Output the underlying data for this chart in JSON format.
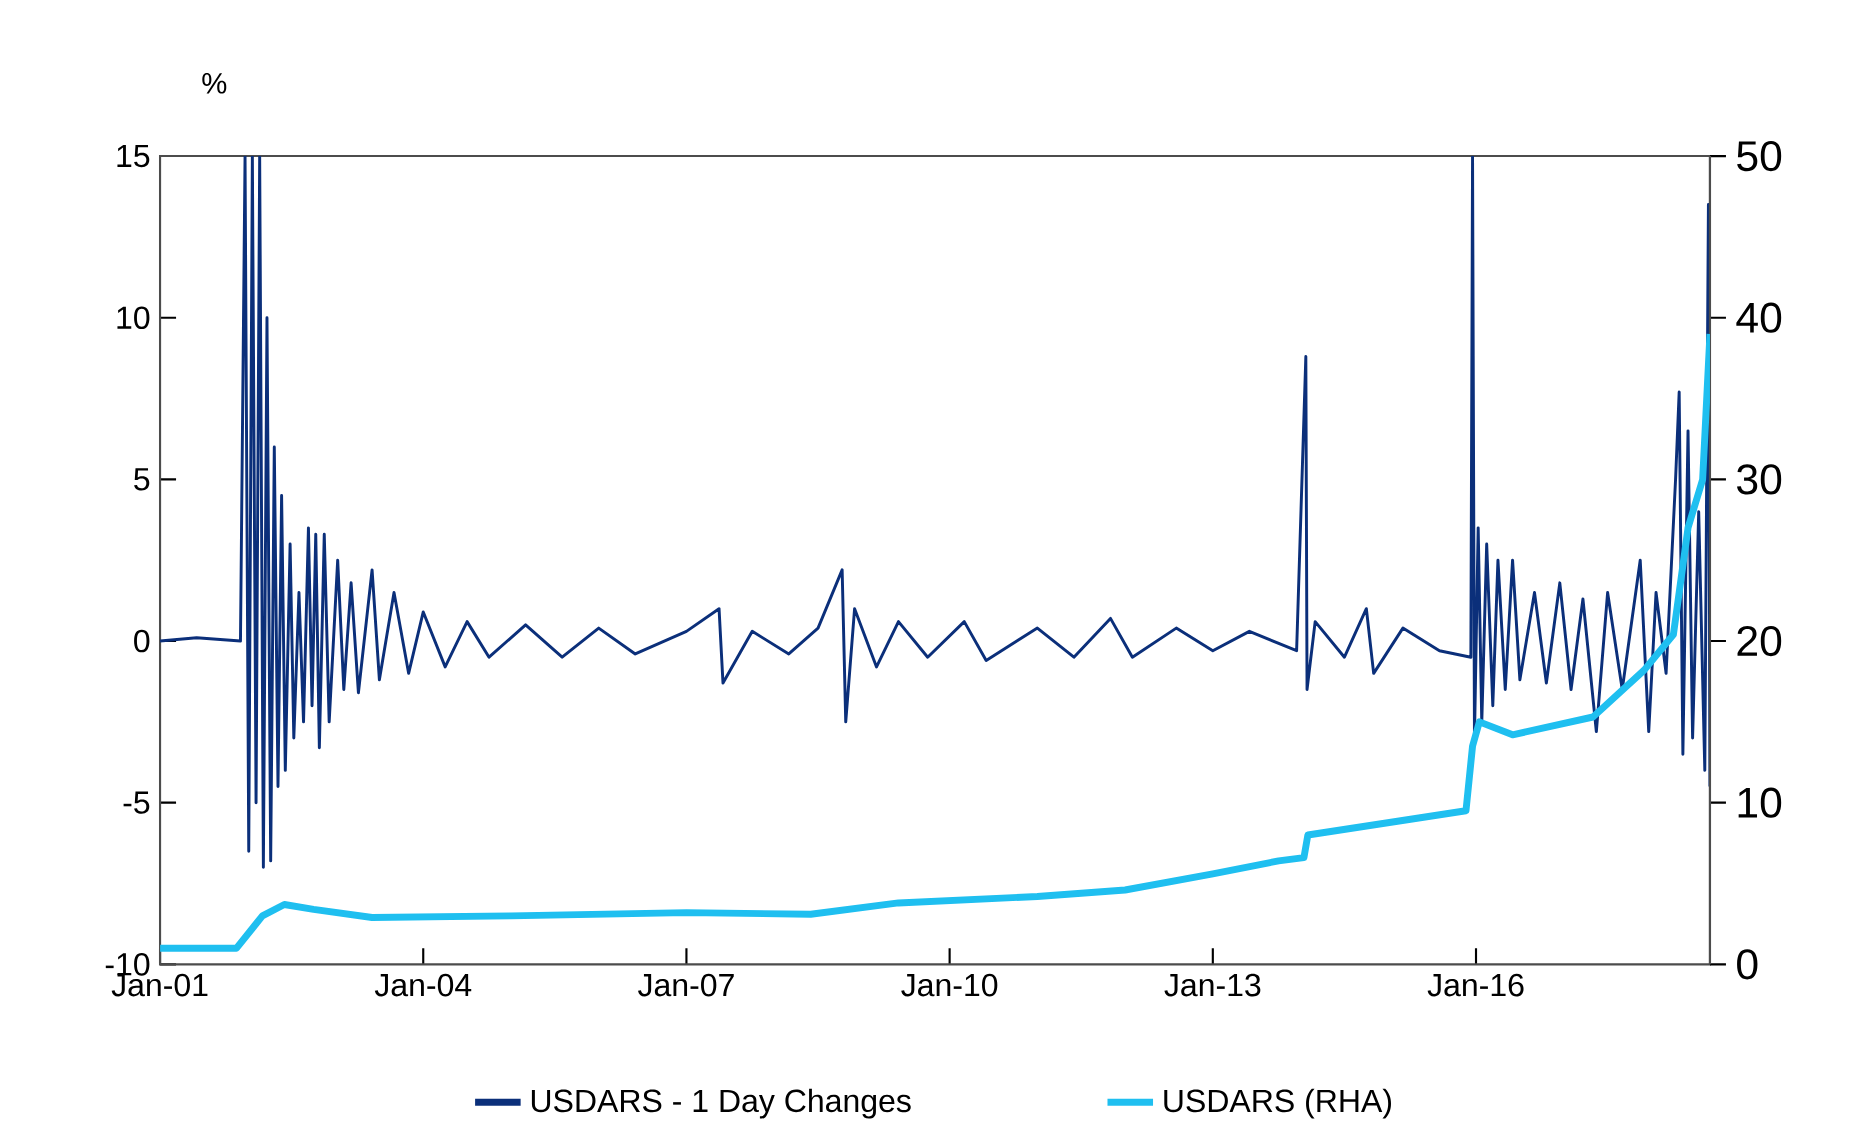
{
  "chart_data": {
    "type": "line",
    "ylabel": "%",
    "legend": "bottom",
    "xlim": [
      "2001-01-01",
      "2018-09-01"
    ],
    "xticks": [
      {
        "value": "2001-01-01",
        "label": "Jan-01"
      },
      {
        "value": "2004-01-01",
        "label": "Jan-04"
      },
      {
        "value": "2007-01-01",
        "label": "Jan-07"
      },
      {
        "value": "2010-01-01",
        "label": "Jan-10"
      },
      {
        "value": "2013-01-01",
        "label": "Jan-13"
      },
      {
        "value": "2016-01-01",
        "label": "Jan-16"
      }
    ],
    "ylim": [
      -10,
      15
    ],
    "yticks": [
      -10,
      -5,
      0,
      5,
      10,
      15
    ],
    "y2lim": [
      0,
      50
    ],
    "y2ticks": [
      0,
      10,
      20,
      30,
      40,
      50
    ],
    "series": [
      {
        "name": "USDARS - 1 Day Changes",
        "color": "#0b2f7a",
        "x": [
          "2001-01-01",
          "2001-06-01",
          "2001-12-01",
          "2001-12-20",
          "2002-01-05",
          "2002-01-20",
          "2002-02-05",
          "2002-02-20",
          "2002-03-05",
          "2002-03-20",
          "2002-04-05",
          "2002-04-20",
          "2002-05-05",
          "2002-05-20",
          "2002-06-05",
          "2002-06-25",
          "2002-07-10",
          "2002-08-01",
          "2002-08-20",
          "2002-09-10",
          "2002-09-25",
          "2002-10-10",
          "2002-10-25",
          "2002-11-15",
          "2002-12-05",
          "2003-01-10",
          "2003-02-05",
          "2003-03-05",
          "2003-04-05",
          "2003-06-01",
          "2003-07-01",
          "2003-09-01",
          "2003-11-01",
          "2004-01-01",
          "2004-04-01",
          "2004-07-01",
          "2004-10-01",
          "2005-03-01",
          "2005-08-01",
          "2006-01-01",
          "2006-06-01",
          "2007-01-01",
          "2007-05-15",
          "2007-06-01",
          "2007-10-01",
          "2008-03-01",
          "2008-07-01",
          "2008-10-10",
          "2008-10-25",
          "2008-12-01",
          "2009-03-01",
          "2009-06-01",
          "2009-10-01",
          "2010-03-01",
          "2010-06-01",
          "2011-01-01",
          "2011-06-01",
          "2011-11-01",
          "2012-02-01",
          "2012-08-01",
          "2013-01-01",
          "2013-06-01",
          "2013-12-15",
          "2014-01-23",
          "2014-01-28",
          "2014-03-01",
          "2014-07-01",
          "2014-10-01",
          "2014-11-01",
          "2015-03-01",
          "2015-08-01",
          "2015-12-10",
          "2015-12-17",
          "2015-12-25",
          "2016-01-10",
          "2016-01-25",
          "2016-02-15",
          "2016-03-10",
          "2016-04-01",
          "2016-05-01",
          "2016-06-01",
          "2016-07-01",
          "2016-09-01",
          "2016-10-20",
          "2016-12-15",
          "2017-02-01",
          "2017-03-20",
          "2017-05-15",
          "2017-07-01",
          "2017-09-01",
          "2017-11-15",
          "2017-12-20",
          "2018-01-20",
          "2018-03-01",
          "2018-04-10",
          "2018-04-25",
          "2018-05-10",
          "2018-06-01",
          "2018-06-20",
          "2018-07-15",
          "2018-08-10",
          "2018-08-25",
          "2018-09-01"
        ],
        "values": [
          0,
          0.1,
          0,
          15,
          -6.5,
          15,
          -5,
          15,
          -7,
          10,
          -6.8,
          6,
          -4.5,
          4.5,
          -4,
          3,
          -3,
          1.5,
          -2.5,
          3.5,
          -2,
          3.3,
          -3.3,
          3.3,
          -2.5,
          2.5,
          -1.5,
          1.8,
          -1.6,
          2.2,
          -1.2,
          1.5,
          -1,
          0.9,
          -0.8,
          0.6,
          -0.5,
          0.5,
          -0.5,
          0.4,
          -0.4,
          0.3,
          1.0,
          -1.3,
          0.3,
          -0.4,
          0.4,
          2.2,
          -2.5,
          1.0,
          -0.8,
          0.6,
          -0.5,
          0.6,
          -0.6,
          0.4,
          -0.5,
          0.7,
          -0.5,
          0.4,
          -0.3,
          0.3,
          -0.3,
          8.8,
          -1.5,
          0.6,
          -0.5,
          1,
          -1,
          0.4,
          -0.3,
          -0.5,
          15,
          -3,
          3.5,
          -2.5,
          3,
          -2,
          2.5,
          -1.5,
          2.5,
          -1.2,
          1.5,
          -1.3,
          1.8,
          -1.5,
          1.3,
          -2.8,
          1.5,
          -1.5,
          2.5,
          -2.8,
          1.5,
          -1,
          5,
          7.7,
          -3.5,
          6.5,
          -3,
          4,
          -4,
          13.5,
          -4.5
        ]
      },
      {
        "name": "USDARS (RHA)",
        "color": "#1fbff0",
        "axis": "y2",
        "x": [
          "2001-01-01",
          "2001-11-15",
          "2002-03-01",
          "2002-06-01",
          "2002-10-01",
          "2003-06-01",
          "2005-01-01",
          "2007-01-01",
          "2008-06-01",
          "2009-06-01",
          "2011-01-01",
          "2012-01-01",
          "2013-01-01",
          "2013-10-01",
          "2014-01-15",
          "2014-02-01",
          "2015-11-20",
          "2015-12-17",
          "2016-01-15",
          "2016-06-01",
          "2017-05-01",
          "2017-12-01",
          "2018-04-01",
          "2018-06-01",
          "2018-08-01",
          "2018-09-01"
        ],
        "values": [
          1.0,
          1.0,
          3.0,
          3.7,
          3.4,
          2.9,
          3.0,
          3.2,
          3.1,
          3.8,
          4.2,
          4.6,
          5.6,
          6.4,
          6.6,
          8.0,
          9.5,
          13.5,
          15.0,
          14.2,
          15.3,
          18.2,
          20.4,
          27,
          30,
          39
        ]
      }
    ]
  }
}
